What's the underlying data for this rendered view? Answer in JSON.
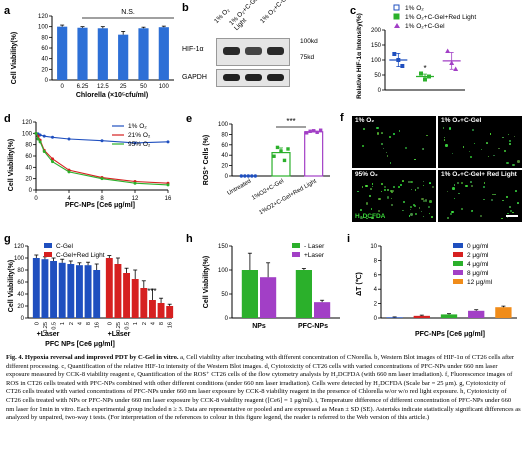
{
  "panels": {
    "a": {
      "letter": "a",
      "chart_data": {
        "type": "bar",
        "categories": [
          "0",
          "6.25",
          "12.5",
          "25",
          "50",
          "100"
        ],
        "values": [
          100,
          98,
          97,
          85,
          97,
          99
        ],
        "errors": [
          3,
          2,
          3,
          6,
          2,
          2
        ],
        "ylabel": "Cell Viability(%)",
        "xlabel": "Chlorella (×10⁵cfu/ml)",
        "ylim": [
          0,
          120
        ],
        "yticks": [
          0,
          20,
          40,
          60,
          80,
          100,
          120
        ],
        "annotation": "N.S.",
        "color": "#2d6fd6"
      }
    },
    "b": {
      "letter": "b",
      "lanes": [
        "1% O₂",
        "1% O₂+C-Gel +Red Light",
        "1% O₂+C-Gel"
      ],
      "rows": [
        "HIF-1α",
        "GAPDH"
      ],
      "markers": [
        "100kd",
        "75kd"
      ]
    },
    "c": {
      "letter": "c",
      "chart_data": {
        "type": "bar",
        "categories": [
          "1% O₂",
          "1% O₂+C-Gel+Red Light",
          "1% O₂+C-Gel"
        ],
        "values": [
          100,
          45,
          97
        ],
        "errors": [
          22,
          8,
          28
        ],
        "points": [
          [
            120,
            100,
            80
          ],
          [
            55,
            35,
            45
          ],
          [
            130,
            90,
            70
          ]
        ],
        "ylabel": "Relative HIF-1α Intensity(%)",
        "ylim": [
          0,
          200
        ],
        "yticks": [
          0,
          50,
          100,
          150,
          200
        ],
        "annotation": "*",
        "colors": [
          "#1f4fbf",
          "#2bb02b",
          "#a23fc6"
        ],
        "legend": [
          "1% O₂",
          "1% O₂+C-Gel+Red Light",
          "1% O₂+C-Gel"
        ]
      }
    },
    "d": {
      "letter": "d",
      "chart_data": {
        "type": "line",
        "x": [
          0,
          0.25,
          0.5,
          1,
          2,
          4,
          8,
          12,
          16
        ],
        "series": [
          {
            "name": "1% O₂",
            "values": [
              100,
              99,
              97,
              95,
              93,
              90,
              87,
              83,
              85
            ],
            "color": "#1f4fbf"
          },
          {
            "name": "21% O₂",
            "values": [
              100,
              95,
              88,
              70,
              55,
              35,
              22,
              15,
              12
            ],
            "color": "#d62020"
          },
          {
            "name": "95% O₂",
            "values": [
              100,
              90,
              85,
              68,
              50,
              32,
              20,
              12,
              9
            ],
            "color": "#2bb02b"
          }
        ],
        "ylabel": "Cell Viability(%)",
        "xlabel": "PFC-NPs [Ce6 μg/ml]",
        "xlim": [
          0,
          16
        ],
        "ylim": [
          0,
          120
        ],
        "xticks": [
          0,
          4,
          8,
          12,
          16
        ],
        "yticks": [
          0,
          20,
          40,
          60,
          80,
          100,
          120
        ]
      }
    },
    "e": {
      "letter": "e",
      "chart_data": {
        "type": "bar",
        "categories": [
          "Untreated",
          "1%O2+C-Gel",
          "1%O2+C-Gel+Red Light"
        ],
        "values": [
          0,
          45,
          85
        ],
        "errors": [
          0,
          9,
          3
        ],
        "points": [
          [
            0,
            0,
            0,
            0,
            0
          ],
          [
            38,
            55,
            48,
            30,
            52
          ],
          [
            83,
            86,
            87,
            84,
            88
          ]
        ],
        "ylabel": "ROS⁺ Cells (%)",
        "ylim": [
          0,
          100
        ],
        "yticks": [
          0,
          20,
          40,
          60,
          80,
          100
        ],
        "annotation": "***",
        "colors": [
          "#1f4fbf",
          "#2bb02b",
          "#a23fc6"
        ]
      }
    },
    "f": {
      "letter": "f",
      "labels": [
        "1% O₂",
        "1% O₂+C-Gel",
        "95% O₂",
        "1% O₂+C-Gel+ Red Light"
      ],
      "stain": "H₂DCFDA"
    },
    "g": {
      "letter": "g",
      "chart_data": {
        "type": "bar",
        "categories": [
          "0",
          "0.25",
          "0.5",
          "1",
          "2",
          "4",
          "8",
          "16"
        ],
        "series": [
          {
            "name": "C-Gel",
            "values": [
              100,
              98,
              95,
              92,
              90,
              88,
              88,
              80
            ],
            "errors": [
              5,
              4,
              5,
              6,
              5,
              4,
              5,
              10
            ],
            "color": "#1f4fbf"
          },
          {
            "name": "C-Gel+Red Light",
            "values": [
              100,
              90,
              75,
              65,
              50,
              30,
              25,
              20
            ],
            "errors": [
              4,
              10,
              8,
              15,
              12,
              18,
              8,
              3
            ],
            "color": "#d62020"
          }
        ],
        "ylabel": "Cell Viability(%)",
        "xlabel": "PFC NPs [Ce6 μg/ml]",
        "group_label": "+Laser",
        "ylim": [
          0,
          120
        ],
        "yticks": [
          0,
          20,
          40,
          60,
          80,
          100,
          120
        ],
        "annotation": "***"
      }
    },
    "h": {
      "letter": "h",
      "chart_data": {
        "type": "bar",
        "categories": [
          "NPs",
          "PFC-NPs"
        ],
        "series": [
          {
            "name": "- Laser",
            "values": [
              100,
              100
            ],
            "errors": [
              35,
              3
            ],
            "color": "#2bb02b"
          },
          {
            "name": "+Laser",
            "values": [
              85,
              33
            ],
            "errors": [
              30,
              4
            ],
            "color": "#a23fc6"
          }
        ],
        "ylabel": "Cell Viability(%)",
        "ylim": [
          0,
          150
        ],
        "yticks": [
          0,
          50,
          100,
          150
        ],
        "annotation": "***"
      }
    },
    "i": {
      "letter": "i",
      "chart_data": {
        "type": "bar",
        "categories": [
          "0 μg/ml",
          "2 μg/ml",
          "4 μg/ml",
          "8 μg/ml",
          "12 μg/ml"
        ],
        "values": [
          0.1,
          0.3,
          0.5,
          1.0,
          1.5
        ],
        "errors": [
          0.05,
          0.1,
          0.1,
          0.15,
          0.15
        ],
        "colors": [
          "#1f4fbf",
          "#d62020",
          "#2bb02b",
          "#a23fc6",
          "#f08c1a"
        ],
        "ylabel": "ΔT (℃)",
        "xlabel": "PFC-NPs [Ce6 μg/ml]",
        "ylim": [
          0,
          10
        ],
        "yticks": [
          0,
          2,
          4,
          6,
          8,
          10
        ]
      }
    }
  },
  "caption": {
    "fig_label": "Fig. 4.",
    "title": "Hypoxia reversal and improved PDT by C-Gel in vitro.",
    "body": "a, Cell viability after incubating with different concentration of CNorella. b, Western Blot images of HIF-1α of CT26 cells after different processing. c, Quantification of the relative HIF-1α intensity of the Western Blot images. d, Cytotoxicity of CT26 cells with varied concentrations of PFC-NPs under 660 nm laser exposure measured by CCK-8 viability reagent e, Quantification of the ROS⁺ CT26 cells of the flow cytometry analysis by H₂DCFDA (with 660 nm laser irradiation). f, Fluorescence images of ROS in CT26 cells treated with PFC-NPs combined with other different conditions (under 660 nm laser irradiation). Cells were detected by H₂DCFDA (Scale bar = 25 μm). g, Cytotoxicity of CT26 cells treated with varied concentrations of PFC-NPs under 660 nm laser exposure by CCK-8 viability reagent in the presence of Chlorella w/or w/o red light exposure. h, Cytotoxicity of CT26 cells treated with NPs or PFC-NPs under 660 nm laser exposure by CCK-8 viability reagent ([Ce6] = 1 μg/ml). i, Temperature difference of different concentration of PFC-NPs under 660 nm laser for 1min in vitro. Each experimental group included n ≥ 3. Data are representative or pooled and are expressed as Mean ± SD (SE). Asterisks indicate statistically significant differences as analyzed by unpaired, two-way t tests. (For interpretation of the references to colour in this figure legend, the reader is referred to the Web version of this article.)"
  }
}
